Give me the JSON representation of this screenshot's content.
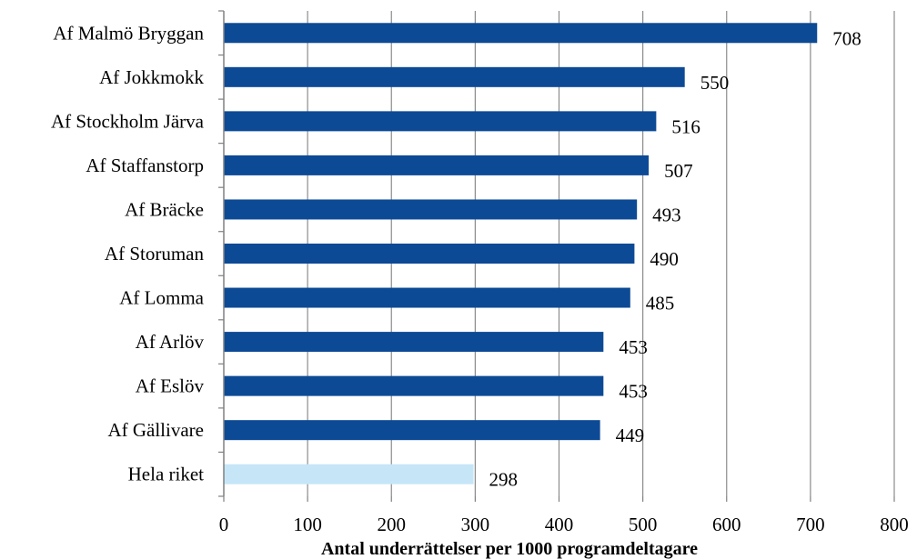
{
  "chart_data": {
    "type": "bar",
    "orientation": "horizontal",
    "categories": [
      "Af Malmö Bryggan",
      "Af Jokkmokk",
      "Af Stockholm Järva",
      "Af Staffanstorp",
      "Af Bräcke",
      "Af Storuman",
      "Af Lomma",
      "Af Arlöv",
      "Af Eslöv",
      "Af Gällivare",
      "Hela riket"
    ],
    "values": [
      708,
      550,
      516,
      507,
      493,
      490,
      485,
      453,
      453,
      449,
      298
    ],
    "value_labels": [
      "708",
      "550",
      "516",
      "507",
      "493",
      "490",
      "485",
      "453",
      "453",
      "449",
      "298"
    ],
    "bar_colors": [
      "#0d4a96",
      "#0d4a96",
      "#0d4a96",
      "#0d4a96",
      "#0d4a96",
      "#0d4a96",
      "#0d4a96",
      "#0d4a96",
      "#0d4a96",
      "#0d4a96",
      "#c6e6f8"
    ],
    "xlabel": "Antal underrättelser per 1000 programdeltagare",
    "xlim": [
      0,
      800
    ],
    "xticks": [
      "0",
      "100",
      "200",
      "300",
      "400",
      "500",
      "600",
      "700",
      "800"
    ],
    "grid": "vertical",
    "legend": "none"
  }
}
